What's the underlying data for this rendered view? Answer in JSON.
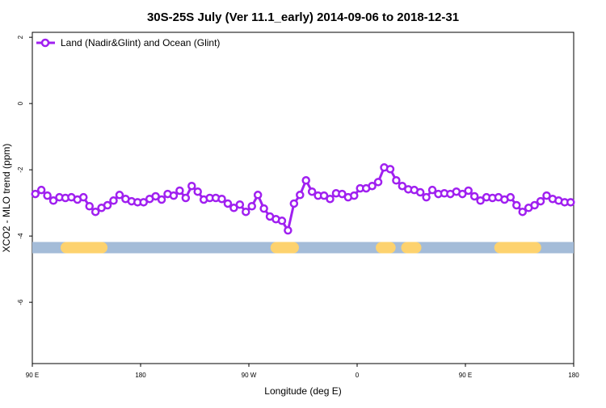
{
  "chart_data": {
    "type": "line",
    "title": "30S-25S July (Ver 11.1_early)   2014-09-06 to 2018-12-31",
    "xlabel": "Longitude (deg E)",
    "ylabel": "XCO2 - MLO trend (ppm)",
    "x": [
      92.5,
      97.5,
      102.5,
      107.5,
      112.5,
      117.5,
      122.5,
      127.5,
      132.5,
      137.5,
      142.5,
      147.5,
      152.5,
      157.5,
      162.5,
      167.5,
      172.5,
      177.5,
      182.5,
      187.5,
      192.5,
      197.5,
      202.5,
      207.5,
      212.5,
      217.5,
      222.5,
      227.5,
      232.5,
      237.5,
      242.5,
      247.5,
      252.5,
      257.5,
      262.5,
      267.5,
      272.5,
      277.5,
      282.5,
      287.5,
      292.5,
      297.5,
      302.5,
      307.5,
      312.5,
      317.5,
      322.5,
      327.5,
      332.5,
      337.5,
      342.5,
      347.5,
      352.5,
      357.5,
      362.5,
      367.5,
      372.5,
      377.5,
      382.5,
      387.5,
      392.5,
      397.5,
      402.5,
      407.5,
      412.5,
      417.5,
      422.5,
      427.5,
      432.5,
      437.5,
      442.5,
      447.5,
      452.5,
      457.5,
      462.5,
      467.5,
      472.5,
      477.5,
      482.5,
      487.5,
      492.5,
      497.5,
      502.5,
      507.5,
      512.5,
      517.5,
      522.5,
      527.5,
      532.5,
      537.5
    ],
    "series": [
      {
        "name": "Land (Nadir&Glint) and Ocean (Glint)",
        "color": "#a020f0",
        "values": [
          -2.73,
          -2.61,
          -2.78,
          -2.93,
          -2.83,
          -2.85,
          -2.83,
          -2.9,
          -2.83,
          -3.1,
          -3.27,
          -3.15,
          -3.07,
          -2.93,
          -2.76,
          -2.88,
          -2.95,
          -2.98,
          -2.98,
          -2.88,
          -2.8,
          -2.9,
          -2.73,
          -2.78,
          -2.63,
          -2.85,
          -2.49,
          -2.66,
          -2.9,
          -2.85,
          -2.85,
          -2.88,
          -3.02,
          -3.15,
          -3.05,
          -3.27,
          -3.1,
          -2.76,
          -3.17,
          -3.41,
          -3.49,
          -3.54,
          -3.83,
          -3.02,
          -2.76,
          -2.32,
          -2.66,
          -2.78,
          -2.78,
          -2.88,
          -2.71,
          -2.73,
          -2.83,
          -2.78,
          -2.56,
          -2.56,
          -2.49,
          -2.37,
          -1.93,
          -1.98,
          -2.32,
          -2.49,
          -2.59,
          -2.61,
          -2.68,
          -2.83,
          -2.61,
          -2.73,
          -2.71,
          -2.73,
          -2.66,
          -2.73,
          -2.63,
          -2.8,
          -2.93,
          -2.83,
          -2.85,
          -2.83,
          -2.9,
          -2.83,
          -3.07,
          -3.27,
          -3.15,
          -3.07,
          -2.95,
          -2.78,
          -2.88,
          -2.93,
          -2.98,
          -2.98
        ]
      }
    ],
    "surface_band": {
      "y": -4.35,
      "ocean_color": "#a4bcd8",
      "land_color": "#fdd26e",
      "land": [
        [
          113.5,
          152.5
        ],
        [
          288,
          311.6
        ],
        [
          375.5,
          392
        ],
        [
          404,
          406
        ],
        [
          474,
          513
        ]
      ]
    },
    "xlim": [
      90,
      540
    ],
    "xticks": [
      {
        "value": 90,
        "label": "90 E"
      },
      180,
      {
        "value": 270,
        "label": "90 W"
      },
      {
        "value": 360,
        "label": "0"
      },
      {
        "value": 450,
        "label": "90 E"
      },
      {
        "value": 540,
        "label": "180"
      }
    ],
    "ylim": [
      -7.85,
      2.15
    ],
    "yticks": [
      2,
      0,
      -2,
      -4,
      -6
    ],
    "legend": "top-left"
  }
}
